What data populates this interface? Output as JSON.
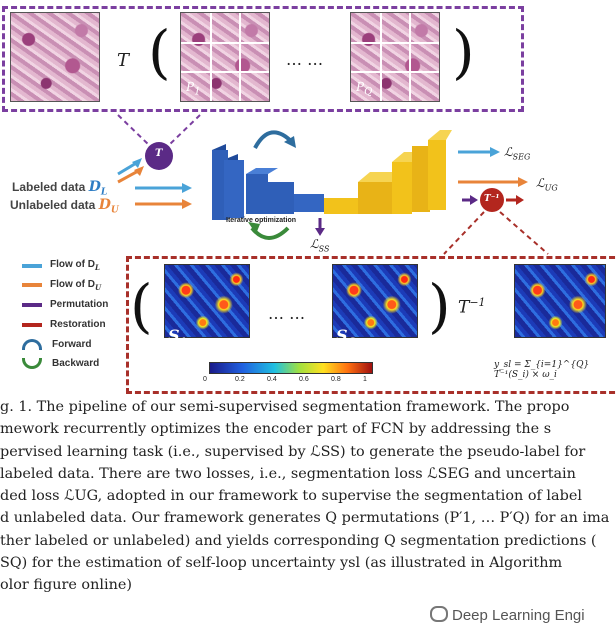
{
  "diagram": {
    "top_op": "T",
    "ellipsis": "… …",
    "node_T": "T",
    "node_Tinv": "T⁻¹",
    "labeled": {
      "text": "Labeled data ",
      "sym": "D",
      "sub": "L"
    },
    "unlabeled": {
      "text": "Unlabeled data ",
      "sym": "D",
      "sub": "U"
    },
    "iterative": "Iterative optimization",
    "loss_ss": {
      "sym": "ℒ",
      "sub": "SS"
    },
    "loss_seg": {
      "sym": "ℒ",
      "sub": "SEG"
    },
    "loss_ug": {
      "sym": "ℒ",
      "sub": "UG"
    },
    "p1": "P",
    "pq": "P",
    "s1": "S",
    "s1_sub": "1",
    "sq": "S",
    "sq_sub": "Q",
    "tinv_label": "T",
    "tinv_sup": "−1",
    "formula": "y_sl = Σ_{i=1}^{Q} T⁻¹(S_i) × ω_i",
    "colorbar_ticks": [
      "0",
      "0.2",
      "0.4",
      "0.6",
      "0.8",
      "1"
    ],
    "legend": [
      {
        "label": "Flow of D",
        "sub": "L",
        "color": "#4aa3d8",
        "icon": "arrow-right-icon"
      },
      {
        "label": "Flow of D",
        "sub": "U",
        "color": "#e8843a",
        "icon": "arrow-right-icon"
      },
      {
        "label": "Permutation",
        "sub": "",
        "color": "#5b2a86",
        "icon": "arrow-right-icon"
      },
      {
        "label": "Restoration",
        "sub": "",
        "color": "#b3261e",
        "icon": "arrow-right-icon"
      },
      {
        "label": "Forward",
        "sub": "",
        "color": "#2e6d9e",
        "icon": "curved-arrow-icon"
      },
      {
        "label": "Backward",
        "sub": "",
        "color": "#3a8a3a",
        "icon": "curved-arrow-icon"
      }
    ],
    "colors": {
      "purple": "#7b3fa0",
      "red": "#a8302a",
      "blue_enc": "#2f5fb8",
      "yellow_dec": "#f2c21b"
    }
  },
  "caption": {
    "lines": [
      "g. 1. The pipeline of our semi-supervised segmentation framework. The propo",
      "mework recurrently optimizes the encoder part of FCN by addressing the s",
      "pervised learning task (i.e., supervised by ℒSS) to generate the pseudo-label for",
      "labeled data. There are two losses, i.e., segmentation loss ℒSEG and uncertain",
      "ded loss ℒUG, adopted in our framework to supervise the segmentation of label",
      "d unlabeled data. Our framework generates Q permutations (P′1, … P′Q) for an ima",
      "ther labeled or unlabeled) and yields corresponding Q segmentation predictions (",
      "SQ) for the estimation of self-loop uncertainty ysl (as illustrated in Algorithm",
      "olor figure online)"
    ]
  },
  "watermark": "Deep Learning Engi"
}
